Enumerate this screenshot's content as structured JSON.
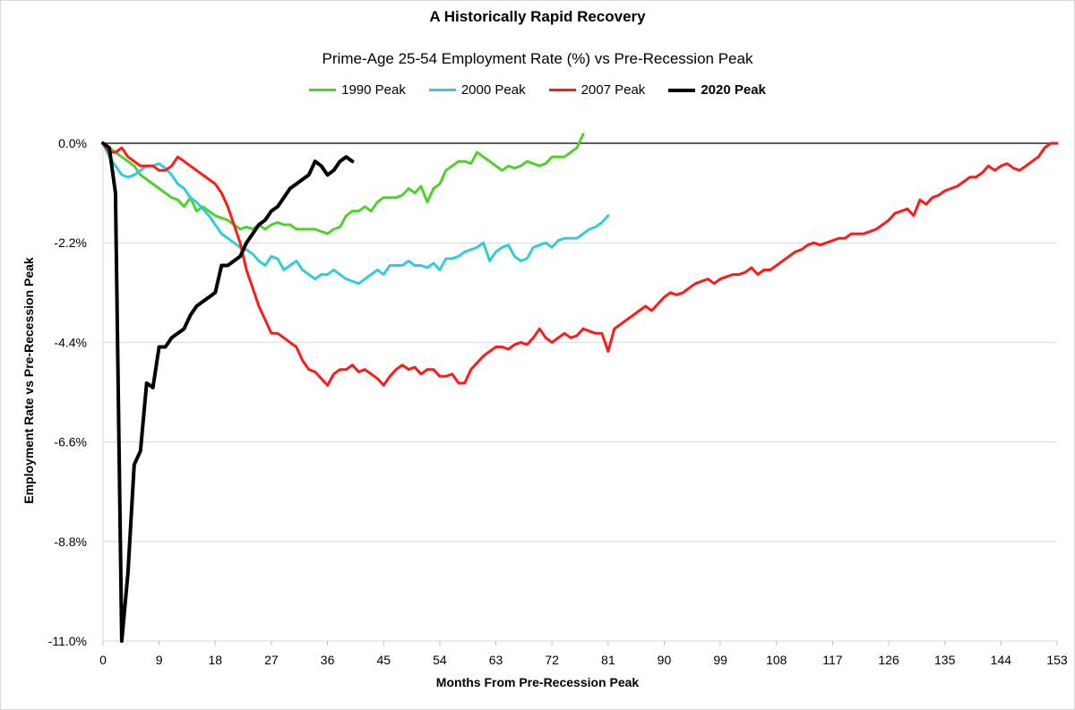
{
  "chart_data": {
    "type": "line",
    "title": "A Historically Rapid Recovery",
    "subtitle": "Prime-Age 25-54 Employment Rate (%) vs  Pre-Recession Peak",
    "xlabel": "Months From Pre-Recession Peak",
    "ylabel": "Employment Rate vs Pre-Recession Peak",
    "xlim": [
      0,
      153
    ],
    "ylim": [
      -11.0,
      0.0
    ],
    "x_ticks": [
      "0",
      "9",
      "18",
      "27",
      "36",
      "45",
      "54",
      "63",
      "72",
      "81",
      "90",
      "99",
      "108",
      "117",
      "126",
      "135",
      "144",
      "153"
    ],
    "y_ticks": [
      "0.0%",
      "-2.2%",
      "-4.4%",
      "-6.6%",
      "-8.8%",
      "-11.0%"
    ],
    "grid": "horizontal",
    "legend_position": "top",
    "series": [
      {
        "name": "1990 Peak",
        "color": "#4fd12c",
        "bold": false,
        "x": [
          0,
          1,
          2,
          3,
          4,
          5,
          6,
          7,
          8,
          9,
          10,
          11,
          12,
          13,
          14,
          15,
          16,
          17,
          18,
          19,
          20,
          21,
          22,
          23,
          24,
          25,
          26,
          27,
          28,
          29,
          30,
          31,
          32,
          33,
          34,
          35,
          36,
          37,
          38,
          39,
          40,
          41,
          42,
          43,
          44,
          45,
          46,
          47,
          48,
          49,
          50,
          51,
          52,
          53,
          54,
          55,
          56,
          57,
          58,
          59,
          60,
          61,
          62,
          63,
          64,
          65,
          66,
          67,
          68,
          69,
          70,
          71,
          72,
          73,
          74,
          75,
          76,
          77
        ],
        "values": [
          0.0,
          -0.1,
          -0.2,
          -0.3,
          -0.4,
          -0.5,
          -0.7,
          -0.8,
          -0.9,
          -1.0,
          -1.1,
          -1.2,
          -1.25,
          -1.4,
          -1.2,
          -1.5,
          -1.4,
          -1.5,
          -1.6,
          -1.65,
          -1.7,
          -1.8,
          -1.9,
          -1.85,
          -1.9,
          -1.8,
          -1.9,
          -1.8,
          -1.75,
          -1.8,
          -1.8,
          -1.9,
          -1.9,
          -1.9,
          -1.9,
          -1.95,
          -2.0,
          -1.9,
          -1.85,
          -1.6,
          -1.5,
          -1.5,
          -1.4,
          -1.5,
          -1.3,
          -1.2,
          -1.2,
          -1.2,
          -1.15,
          -1.0,
          -1.1,
          -0.95,
          -1.3,
          -1.0,
          -0.9,
          -0.6,
          -0.5,
          -0.4,
          -0.4,
          -0.45,
          -0.2,
          -0.3,
          -0.4,
          -0.5,
          -0.6,
          -0.5,
          -0.55,
          -0.5,
          -0.4,
          -0.45,
          -0.5,
          -0.45,
          -0.3,
          -0.3,
          -0.3,
          -0.2,
          -0.1,
          0.2
        ]
      },
      {
        "name": "2000 Peak",
        "color": "#33ccdd",
        "bold": false,
        "x": [
          0,
          1,
          2,
          3,
          4,
          5,
          6,
          7,
          8,
          9,
          10,
          11,
          12,
          13,
          14,
          15,
          16,
          17,
          18,
          19,
          20,
          21,
          22,
          23,
          24,
          25,
          26,
          27,
          28,
          29,
          30,
          31,
          32,
          33,
          34,
          35,
          36,
          37,
          38,
          39,
          40,
          41,
          42,
          43,
          44,
          45,
          46,
          47,
          48,
          49,
          50,
          51,
          52,
          53,
          54,
          55,
          56,
          57,
          58,
          59,
          60,
          61,
          62,
          63,
          64,
          65,
          66,
          67,
          68,
          69,
          70,
          71,
          72,
          73,
          74,
          75,
          76,
          77,
          78,
          79,
          80,
          81
        ],
        "values": [
          0.0,
          -0.3,
          -0.5,
          -0.7,
          -0.75,
          -0.7,
          -0.6,
          -0.5,
          -0.5,
          -0.45,
          -0.55,
          -0.7,
          -0.9,
          -1.0,
          -1.2,
          -1.3,
          -1.45,
          -1.6,
          -1.8,
          -2.0,
          -2.1,
          -2.2,
          -2.3,
          -2.35,
          -2.45,
          -2.6,
          -2.7,
          -2.5,
          -2.55,
          -2.8,
          -2.7,
          -2.6,
          -2.8,
          -2.9,
          -3.0,
          -2.9,
          -2.9,
          -2.8,
          -2.9,
          -3.0,
          -3.05,
          -3.1,
          -3.0,
          -2.9,
          -2.8,
          -2.9,
          -2.7,
          -2.7,
          -2.7,
          -2.6,
          -2.7,
          -2.7,
          -2.75,
          -2.65,
          -2.8,
          -2.55,
          -2.55,
          -2.5,
          -2.4,
          -2.35,
          -2.3,
          -2.2,
          -2.6,
          -2.4,
          -2.3,
          -2.25,
          -2.5,
          -2.6,
          -2.55,
          -2.3,
          -2.25,
          -2.2,
          -2.3,
          -2.15,
          -2.1,
          -2.1,
          -2.1,
          -2.0,
          -1.9,
          -1.85,
          -1.75,
          -1.6
        ]
      },
      {
        "name": "2007 Peak",
        "color": "#ff1a1a",
        "bold": false,
        "x": [
          0,
          1,
          2,
          3,
          4,
          5,
          6,
          7,
          8,
          9,
          10,
          11,
          12,
          13,
          14,
          15,
          16,
          17,
          18,
          19,
          20,
          21,
          22,
          23,
          24,
          25,
          26,
          27,
          28,
          29,
          30,
          31,
          32,
          33,
          34,
          35,
          36,
          37,
          38,
          39,
          40,
          41,
          42,
          43,
          44,
          45,
          46,
          47,
          48,
          49,
          50,
          51,
          52,
          53,
          54,
          55,
          56,
          57,
          58,
          59,
          60,
          61,
          62,
          63,
          64,
          65,
          66,
          67,
          68,
          69,
          70,
          71,
          72,
          73,
          74,
          75,
          76,
          77,
          78,
          79,
          80,
          81,
          82,
          83,
          84,
          85,
          86,
          87,
          88,
          89,
          90,
          91,
          92,
          93,
          94,
          95,
          96,
          97,
          98,
          99,
          100,
          101,
          102,
          103,
          104,
          105,
          106,
          107,
          108,
          109,
          110,
          111,
          112,
          113,
          114,
          115,
          116,
          117,
          118,
          119,
          120,
          121,
          122,
          123,
          124,
          125,
          126,
          127,
          128,
          129,
          130,
          131,
          132,
          133,
          134,
          135,
          136,
          137,
          138,
          139,
          140,
          141,
          142,
          143,
          144,
          145,
          146,
          147,
          148,
          149,
          150,
          151,
          152,
          153
        ],
        "values": [
          0.0,
          -0.2,
          -0.2,
          -0.1,
          -0.3,
          -0.4,
          -0.5,
          -0.5,
          -0.5,
          -0.6,
          -0.6,
          -0.5,
          -0.3,
          -0.4,
          -0.5,
          -0.6,
          -0.7,
          -0.8,
          -0.9,
          -1.1,
          -1.4,
          -1.8,
          -2.2,
          -2.8,
          -3.2,
          -3.6,
          -3.9,
          -4.2,
          -4.2,
          -4.3,
          -4.4,
          -4.5,
          -4.8,
          -5.0,
          -5.05,
          -5.2,
          -5.35,
          -5.1,
          -5.0,
          -5.0,
          -4.9,
          -5.05,
          -5.0,
          -5.1,
          -5.2,
          -5.35,
          -5.15,
          -5.0,
          -4.9,
          -5.0,
          -4.95,
          -5.1,
          -5.0,
          -5.0,
          -5.15,
          -5.15,
          -5.1,
          -5.3,
          -5.3,
          -5.0,
          -4.85,
          -4.7,
          -4.6,
          -4.5,
          -4.5,
          -4.55,
          -4.45,
          -4.4,
          -4.45,
          -4.3,
          -4.1,
          -4.3,
          -4.4,
          -4.3,
          -4.2,
          -4.3,
          -4.25,
          -4.1,
          -4.15,
          -4.2,
          -4.2,
          -4.6,
          -4.1,
          -4.0,
          -3.9,
          -3.8,
          -3.7,
          -3.6,
          -3.7,
          -3.55,
          -3.4,
          -3.3,
          -3.35,
          -3.3,
          -3.2,
          -3.1,
          -3.05,
          -3.0,
          -3.1,
          -3.0,
          -2.95,
          -2.9,
          -2.9,
          -2.85,
          -2.75,
          -2.9,
          -2.8,
          -2.8,
          -2.7,
          -2.6,
          -2.5,
          -2.4,
          -2.35,
          -2.25,
          -2.2,
          -2.25,
          -2.2,
          -2.15,
          -2.1,
          -2.1,
          -2.0,
          -2.0,
          -2.0,
          -1.95,
          -1.9,
          -1.8,
          -1.7,
          -1.55,
          -1.5,
          -1.45,
          -1.6,
          -1.25,
          -1.35,
          -1.2,
          -1.15,
          -1.05,
          -1.0,
          -0.95,
          -0.85,
          -0.75,
          -0.75,
          -0.65,
          -0.5,
          -0.6,
          -0.5,
          -0.45,
          -0.55,
          -0.6,
          -0.5,
          -0.4,
          -0.3,
          -0.1,
          0.0,
          0.0
        ]
      },
      {
        "name": "2020 Peak",
        "color": "#000000",
        "bold": true,
        "x": [
          0,
          1,
          2,
          3,
          4,
          5,
          6,
          7,
          8,
          9,
          10,
          11,
          12,
          13,
          14,
          15,
          16,
          17,
          18,
          19,
          20,
          21,
          22,
          23,
          24,
          25,
          26,
          27,
          28,
          29,
          30,
          31,
          32,
          33,
          34,
          35,
          36,
          37,
          38,
          39,
          40
        ],
        "values": [
          0.0,
          -0.1,
          -1.1,
          -11.0,
          -9.5,
          -7.1,
          -6.8,
          -5.3,
          -5.4,
          -4.5,
          -4.5,
          -4.3,
          -4.2,
          -4.1,
          -3.8,
          -3.6,
          -3.5,
          -3.4,
          -3.3,
          -2.7,
          -2.7,
          -2.6,
          -2.5,
          -2.2,
          -2.0,
          -1.8,
          -1.7,
          -1.5,
          -1.4,
          -1.2,
          -1.0,
          -0.9,
          -0.8,
          -0.7,
          -0.4,
          -0.5,
          -0.7,
          -0.6,
          -0.4,
          -0.3,
          -0.4
        ]
      }
    ]
  }
}
